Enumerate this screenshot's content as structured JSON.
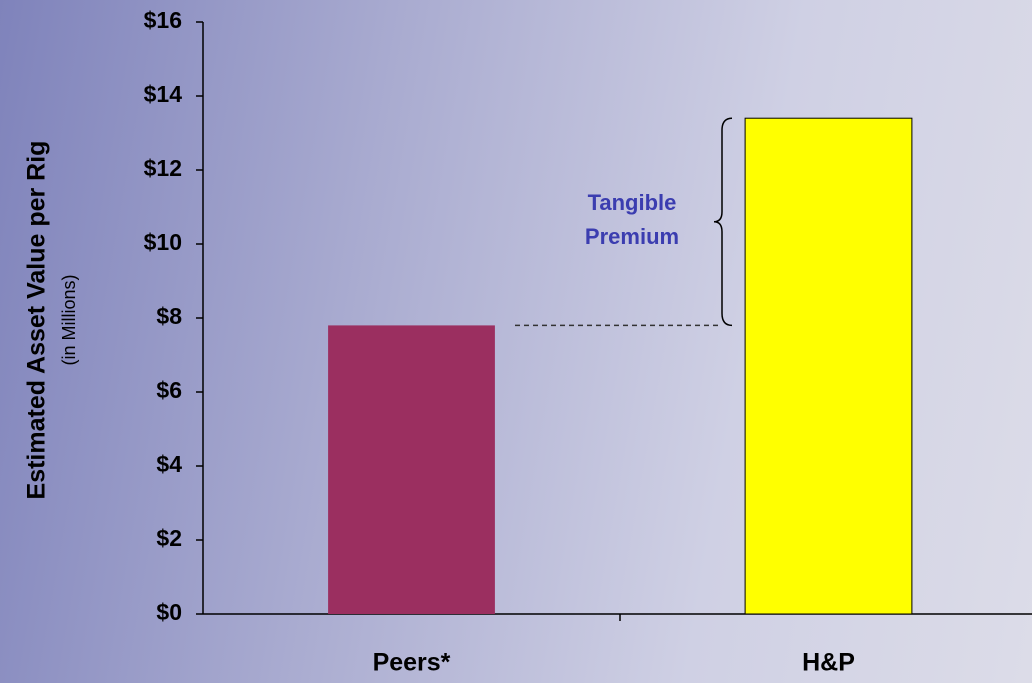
{
  "chart_data": {
    "type": "bar",
    "y_axis_label": "Estimated Asset Value per Rig",
    "y_axis_sublabel": "(in Millions)",
    "annotation": "Tangible Premium",
    "categories": [
      "Peers*",
      "H&P"
    ],
    "values": [
      7.8,
      13.4
    ],
    "colors": [
      "#9b2f60",
      "#ffff00"
    ],
    "ylim": [
      0,
      16
    ],
    "yticks": [
      {
        "value": 0,
        "label": "$0"
      },
      {
        "value": 2,
        "label": "$2"
      },
      {
        "value": 4,
        "label": "$4"
      },
      {
        "value": 6,
        "label": "$6"
      },
      {
        "value": 8,
        "label": "$8"
      },
      {
        "value": 10,
        "label": "$10"
      },
      {
        "value": 12,
        "label": "$12"
      },
      {
        "value": 14,
        "label": "$14"
      },
      {
        "value": 16,
        "label": "$16"
      }
    ]
  }
}
